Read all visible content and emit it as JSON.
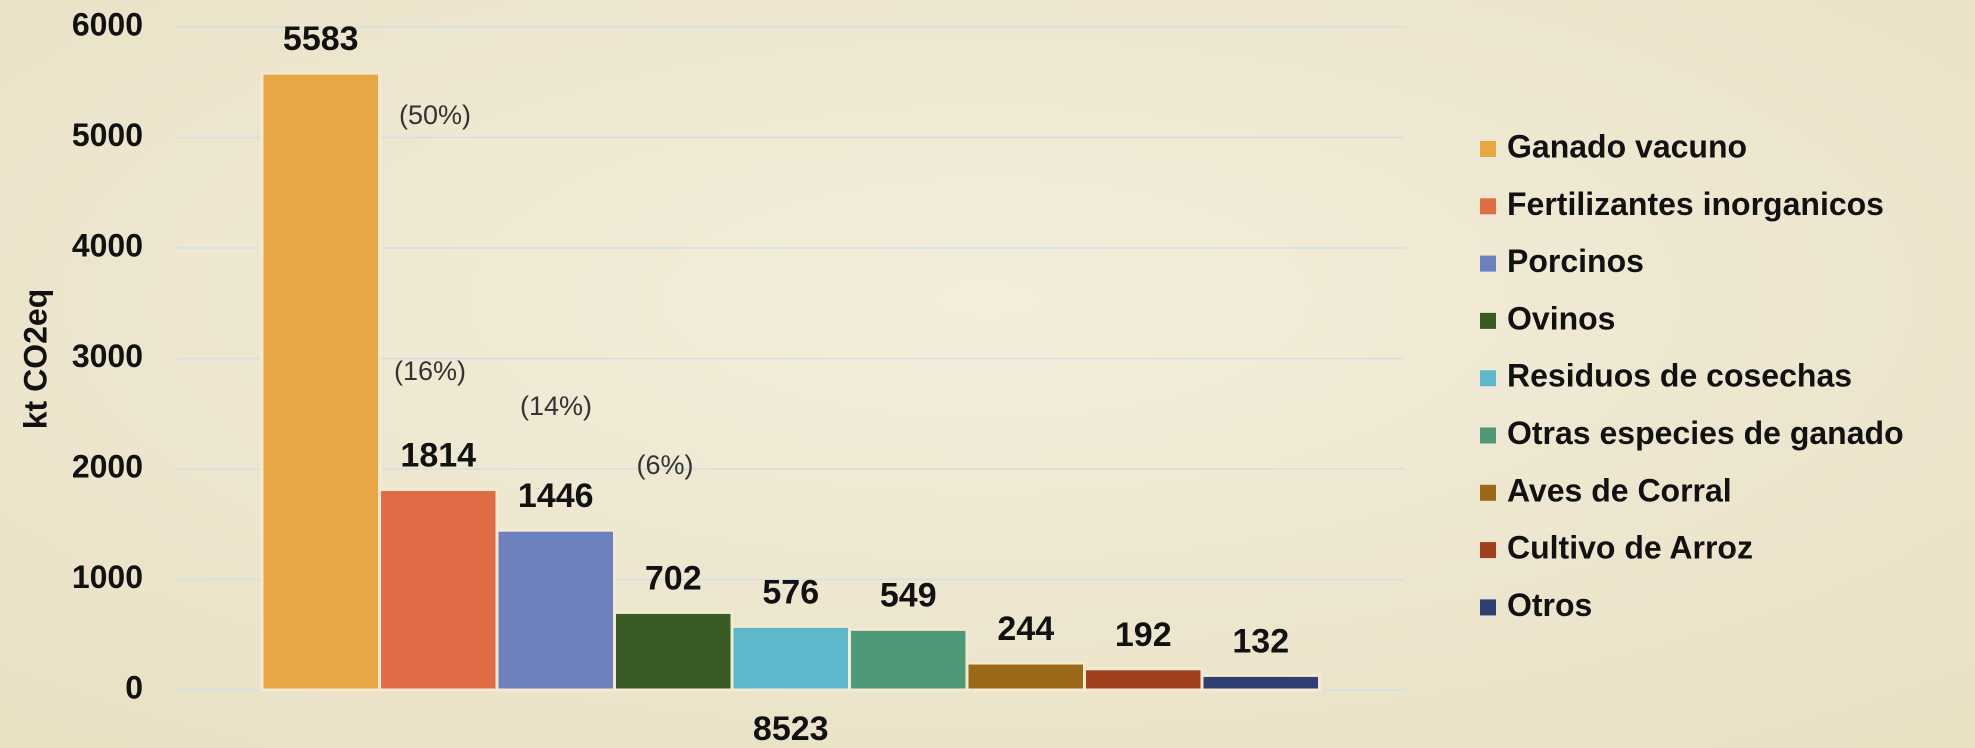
{
  "chart_data": {
    "type": "bar",
    "y_label": "kt CO2eq",
    "categories": [
      "8523"
    ],
    "series": [
      {
        "name": "Ganado vacuno",
        "color": "#e8a744",
        "values": [
          5583
        ]
      },
      {
        "name": "Fertilizantes inorganicos",
        "color": "#e06c45",
        "values": [
          1814
        ]
      },
      {
        "name": "Porcinos",
        "color": "#6b80bd",
        "values": [
          1446
        ]
      },
      {
        "name": "Ovinos",
        "color": "#3a5b25",
        "values": [
          702
        ]
      },
      {
        "name": "Residuos de cosechas",
        "color": "#5db8cc",
        "values": [
          576
        ]
      },
      {
        "name": "Otras especies de ganado",
        "color": "#4e9a77",
        "values": [
          549
        ]
      },
      {
        "name": "Aves de Corral",
        "color": "#9a6a1a",
        "values": [
          244
        ]
      },
      {
        "name": "Cultivo de Arroz",
        "color": "#a1401e",
        "values": [
          192
        ]
      },
      {
        "name": "Otros",
        "color": "#2e3f74",
        "values": [
          132
        ]
      }
    ],
    "annotations": [
      "(50%)",
      "(16%)",
      "(14%)",
      "(6%)"
    ],
    "ylim": [
      0,
      6000
    ],
    "yticks": [
      0,
      1000,
      2000,
      3000,
      4000,
      5000,
      6000
    ],
    "grid": true,
    "legend": "right"
  }
}
